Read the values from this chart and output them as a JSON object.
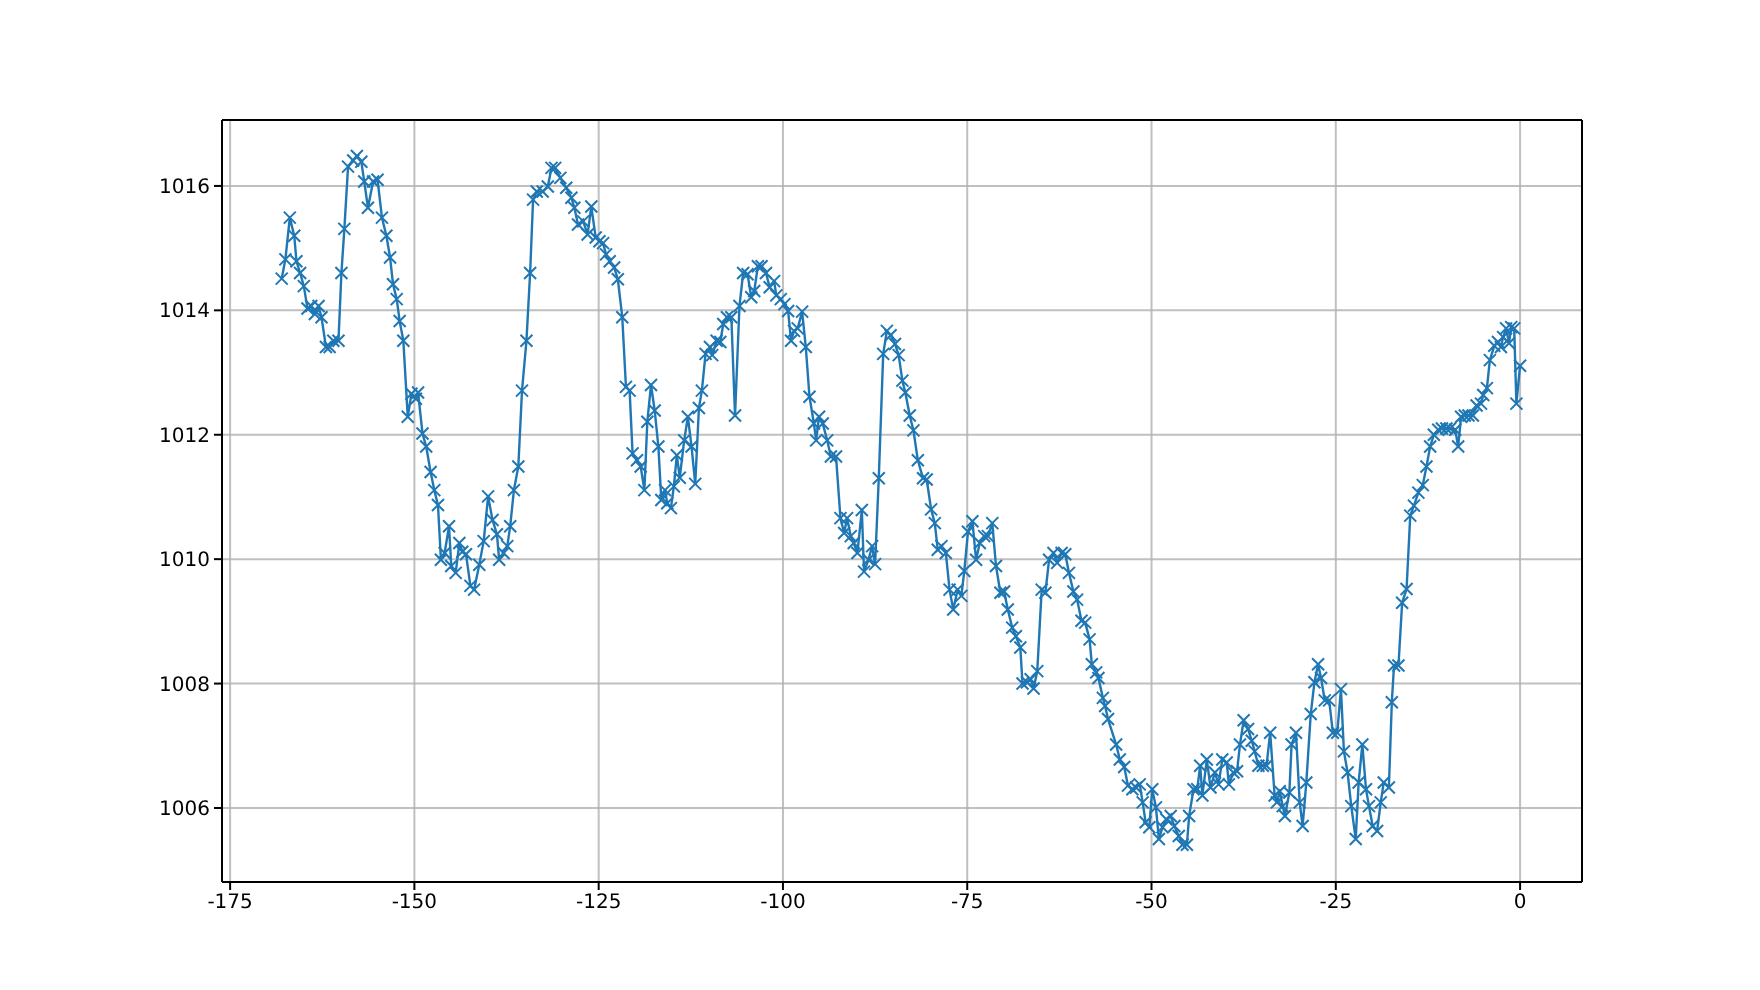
{
  "chart_data": {
    "type": "line",
    "marker": "cross",
    "line_style": "solid",
    "grid": true,
    "xlim": [
      -176.1,
      8.4
    ],
    "ylim": [
      1004.81,
      1017.06
    ],
    "xticks": [
      -175,
      -150,
      -125,
      -100,
      -75,
      -50,
      -25,
      0
    ],
    "yticks": [
      1006,
      1008,
      1010,
      1012,
      1014,
      1016
    ],
    "series": [
      {
        "color": "#1f77b4",
        "x": [
          -168.0,
          -167.5,
          -166.9,
          -166.3,
          -166.0,
          -165.5,
          -165.0,
          -164.5,
          -164.0,
          -163.5,
          -163.0,
          -162.6,
          -162.0,
          -161.5,
          -161.0,
          -160.3,
          -159.9,
          -159.5,
          -159.0,
          -158.3,
          -157.8,
          -157.2,
          -156.8,
          -156.3,
          -155.6,
          -155.0,
          -154.4,
          -153.8,
          -153.3,
          -152.9,
          -152.4,
          -152.0,
          -151.5,
          -150.9,
          -150.4,
          -149.8,
          -149.5,
          -148.9,
          -148.4,
          -147.8,
          -147.3,
          -146.8,
          -146.4,
          -145.9,
          -145.3,
          -145.0,
          -144.4,
          -143.9,
          -143.5,
          -143.0,
          -142.4,
          -141.9,
          -141.2,
          -140.6,
          -140.0,
          -139.4,
          -138.8,
          -138.5,
          -137.9,
          -137.4,
          -137.0,
          -136.5,
          -135.9,
          -135.4,
          -134.8,
          -134.3,
          -133.9,
          -133.4,
          -132.6,
          -131.9,
          -131.4,
          -130.9,
          -130.2,
          -129.4,
          -128.7,
          -128.3,
          -127.8,
          -127.1,
          -126.5,
          -126.0,
          -125.4,
          -124.9,
          -124.4,
          -124.0,
          -123.5,
          -122.9,
          -122.4,
          -121.8,
          -121.3,
          -120.8,
          -120.4,
          -119.8,
          -119.3,
          -118.8,
          -118.4,
          -117.9,
          -117.4,
          -116.9,
          -116.5,
          -116.0,
          -115.7,
          -115.2,
          -114.8,
          -114.4,
          -114.0,
          -113.4,
          -112.9,
          -112.4,
          -111.9,
          -111.4,
          -111.0,
          -110.5,
          -109.9,
          -109.6,
          -109.0,
          -108.5,
          -108.1,
          -107.6,
          -107.0,
          -106.5,
          -105.9,
          -105.4,
          -104.8,
          -104.3,
          -103.9,
          -103.4,
          -102.9,
          -102.3,
          -101.8,
          -101.2,
          -100.9,
          -100.3,
          -99.8,
          -99.3,
          -98.9,
          -98.5,
          -98.0,
          -97.4,
          -96.9,
          -96.4,
          -95.8,
          -95.5,
          -95.1,
          -94.6,
          -94.0,
          -93.5,
          -92.8,
          -92.2,
          -91.7,
          -91.3,
          -90.8,
          -90.4,
          -89.9,
          -89.3,
          -89.0,
          -88.4,
          -87.9,
          -87.5,
          -87.0,
          -86.4,
          -85.9,
          -85.4,
          -84.8,
          -84.3,
          -83.8,
          -83.4,
          -82.8,
          -82.3,
          -81.7,
          -81.0,
          -80.5,
          -79.9,
          -79.4,
          -79.0,
          -78.5,
          -77.9,
          -77.4,
          -76.9,
          -76.3,
          -75.8,
          -75.4,
          -74.9,
          -74.3,
          -73.8,
          -73.3,
          -72.7,
          -72.2,
          -71.6,
          -71.1,
          -70.5,
          -70.0,
          -69.5,
          -68.9,
          -68.4,
          -67.8,
          -67.5,
          -66.9,
          -66.4,
          -66.0,
          -65.5,
          -64.9,
          -64.4,
          -63.9,
          -63.3,
          -62.8,
          -62.2,
          -61.7,
          -61.2,
          -60.6,
          -60.1,
          -59.5,
          -59.0,
          -58.4,
          -58.1,
          -57.5,
          -57.2,
          -56.6,
          -56.3,
          -55.9,
          -54.8,
          -54.3,
          -53.7,
          -53.2,
          -52.6,
          -52.1,
          -51.6,
          -51.2,
          -50.8,
          -50.3,
          -49.9,
          -49.4,
          -49.0,
          -48.5,
          -48.0,
          -47.4,
          -46.9,
          -46.3,
          -45.8,
          -45.2,
          -44.9,
          -44.3,
          -43.8,
          -43.4,
          -43.1,
          -42.5,
          -42.0,
          -41.4,
          -40.9,
          -40.4,
          -39.8,
          -39.5,
          -38.9,
          -38.4,
          -38.0,
          -37.5,
          -36.9,
          -36.4,
          -36.0,
          -35.5,
          -34.9,
          -34.4,
          -33.9,
          -33.3,
          -33.0,
          -32.6,
          -32.2,
          -31.9,
          -31.3,
          -31.0,
          -30.4,
          -29.9,
          -29.5,
          -29.0,
          -28.4,
          -27.9,
          -27.4,
          -27.0,
          -26.5,
          -25.9,
          -25.4,
          -24.8,
          -24.3,
          -23.9,
          -23.4,
          -22.9,
          -22.3,
          -21.9,
          -21.4,
          -20.9,
          -20.5,
          -20.0,
          -19.4,
          -18.9,
          -18.5,
          -17.8,
          -17.4,
          -17.1,
          -16.5,
          -16.0,
          -15.4,
          -14.9,
          -14.4,
          -13.8,
          -13.2,
          -12.7,
          -12.2,
          -11.7,
          -11.1,
          -10.6,
          -10.0,
          -9.5,
          -8.8,
          -8.4,
          -8.0,
          -7.5,
          -7.0,
          -6.4,
          -5.9,
          -5.3,
          -5.0,
          -4.5,
          -4.1,
          -3.5,
          -3.0,
          -2.6,
          -2.3,
          -1.9,
          -1.5,
          -1.2,
          -0.8,
          -0.5,
          0.0
        ],
        "values": [
          1014.51,
          1014.82,
          1015.49,
          1015.2,
          1014.79,
          1014.6,
          1014.39,
          1014.03,
          1014.07,
          1013.94,
          1014.07,
          1013.89,
          1013.41,
          1013.41,
          1013.51,
          1013.51,
          1014.6,
          1015.31,
          1016.31,
          1016.41,
          1016.48,
          1016.39,
          1016.07,
          1015.65,
          1016.07,
          1016.1,
          1015.49,
          1015.2,
          1014.85,
          1014.42,
          1014.18,
          1013.83,
          1013.51,
          1012.29,
          1012.66,
          1012.58,
          1012.68,
          1012.02,
          1011.81,
          1011.4,
          1011.11,
          1010.87,
          1009.99,
          1010.1,
          1010.53,
          1009.89,
          1009.78,
          1010.26,
          1010.12,
          1010.08,
          1009.57,
          1009.51,
          1009.91,
          1010.29,
          1011.01,
          1010.63,
          1010.4,
          1009.99,
          1010.1,
          1010.21,
          1010.53,
          1011.11,
          1011.49,
          1012.71,
          1013.51,
          1014.6,
          1015.78,
          1015.91,
          1015.91,
          1015.99,
          1016.29,
          1016.29,
          1016.13,
          1015.97,
          1015.81,
          1015.65,
          1015.38,
          1015.43,
          1015.22,
          1015.67,
          1015.17,
          1015.11,
          1015.08,
          1014.9,
          1014.79,
          1014.69,
          1014.5,
          1013.89,
          1012.77,
          1012.71,
          1011.7,
          1011.59,
          1011.49,
          1011.11,
          1012.21,
          1012.8,
          1012.39,
          1011.81,
          1010.95,
          1011.11,
          1010.9,
          1010.82,
          1011.17,
          1011.67,
          1011.31,
          1011.91,
          1012.29,
          1011.81,
          1011.21,
          1012.43,
          1012.71,
          1013.3,
          1013.41,
          1013.28,
          1013.51,
          1013.49,
          1013.78,
          1013.89,
          1013.89,
          1012.31,
          1014.07,
          1014.6,
          1014.58,
          1014.21,
          1014.31,
          1014.71,
          1014.71,
          1014.6,
          1014.37,
          1014.47,
          1014.24,
          1014.18,
          1014.1,
          1013.99,
          1013.51,
          1013.67,
          1013.71,
          1013.98,
          1013.41,
          1012.61,
          1012.18,
          1011.91,
          1012.29,
          1012.18,
          1011.91,
          1011.65,
          1011.65,
          1010.66,
          1010.42,
          1010.66,
          1010.37,
          1010.26,
          1010.1,
          1010.79,
          1009.8,
          1009.99,
          1010.21,
          1009.92,
          1011.3,
          1013.3,
          1013.67,
          1013.6,
          1013.46,
          1013.28,
          1012.87,
          1012.68,
          1012.31,
          1012.07,
          1011.59,
          1011.3,
          1011.28,
          1010.8,
          1010.58,
          1010.15,
          1010.21,
          1010.1,
          1009.51,
          1009.19,
          1009.51,
          1009.41,
          1009.81,
          1010.44,
          1010.61,
          1009.99,
          1010.26,
          1010.37,
          1010.37,
          1010.58,
          1009.89,
          1009.46,
          1009.48,
          1009.19,
          1008.9,
          1008.76,
          1008.58,
          1008.0,
          1008.02,
          1008.07,
          1007.92,
          1008.2,
          1009.51,
          1009.46,
          1009.99,
          1010.1,
          1009.94,
          1010.1,
          1010.08,
          1009.78,
          1009.48,
          1009.35,
          1009.01,
          1008.98,
          1008.71,
          1008.31,
          1008.18,
          1008.09,
          1007.77,
          1007.64,
          1007.43,
          1007.02,
          1006.78,
          1006.66,
          1006.36,
          1006.3,
          1006.33,
          1006.38,
          1006.09,
          1005.77,
          1005.69,
          1006.3,
          1006.01,
          1005.5,
          1005.69,
          1005.82,
          1005.87,
          1005.71,
          1005.55,
          1005.41,
          1005.41,
          1005.87,
          1006.3,
          1006.3,
          1006.68,
          1006.2,
          1006.78,
          1006.33,
          1006.57,
          1006.38,
          1006.78,
          1006.73,
          1006.38,
          1006.57,
          1006.59,
          1007.02,
          1007.41,
          1007.27,
          1007.08,
          1006.91,
          1006.68,
          1006.68,
          1006.68,
          1007.21,
          1006.2,
          1006.09,
          1006.27,
          1006.03,
          1005.87,
          1006.25,
          1007.02,
          1007.21,
          1006.09,
          1005.71,
          1006.41,
          1007.51,
          1008.02,
          1008.31,
          1008.09,
          1007.73,
          1007.73,
          1007.21,
          1007.21,
          1007.91,
          1006.91,
          1006.57,
          1006.03,
          1005.5,
          1006.41,
          1007.02,
          1006.3,
          1006.03,
          1005.71,
          1005.63,
          1006.09,
          1006.41,
          1006.33,
          1007.7,
          1008.29,
          1008.29,
          1009.3,
          1009.52,
          1010.7,
          1010.86,
          1011.07,
          1011.19,
          1011.49,
          1011.81,
          1012.0,
          1012.08,
          1012.1,
          1012.1,
          1012.1,
          1012.08,
          1011.81,
          1012.29,
          1012.31,
          1012.31,
          1012.31,
          1012.47,
          1012.5,
          1012.64,
          1012.75,
          1013.2,
          1013.43,
          1013.49,
          1013.41,
          1013.57,
          1013.71,
          1013.47,
          1013.73,
          1013.71,
          1012.5,
          1013.11
        ]
      }
    ]
  }
}
